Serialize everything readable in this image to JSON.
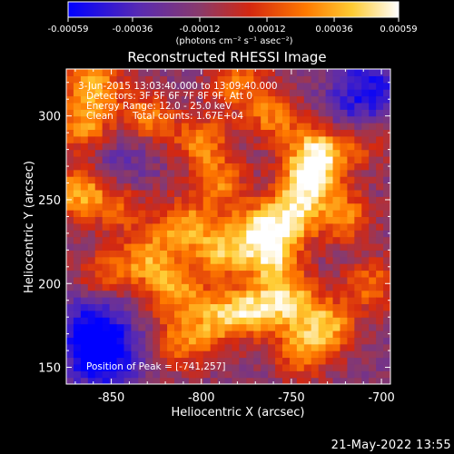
{
  "chart_data": {
    "type": "heatmap",
    "title": "Reconstructed RHESSI Image",
    "colorbar": {
      "ticks": [
        -0.00059,
        -0.00036,
        -0.00012,
        0.00012,
        0.00036,
        0.00059
      ],
      "tick_labels": [
        "-0.00059",
        "-0.00036",
        "-0.00012",
        "0.00012",
        "0.00036",
        "0.00059"
      ],
      "unit_label": "(photons cm⁻² s⁻¹ asec⁻²)",
      "range": [
        -0.00059,
        0.00059
      ]
    },
    "xlabel": "Heliocentric X (arcsec)",
    "ylabel": "Heliocentric Y (arcsec)",
    "xlim": [
      -875,
      -695
    ],
    "ylim": [
      140,
      328
    ],
    "xticks": [
      -850,
      -800,
      -750,
      -700
    ],
    "xtick_labels": [
      "-850",
      "-800",
      "-750",
      "-700"
    ],
    "yticks": [
      150,
      200,
      250,
      300
    ],
    "ytick_labels": [
      "150",
      "200",
      "250",
      "300"
    ],
    "grid": false,
    "annotations": {
      "time_range": "3-Jun-2015 13:03:40.000 to 13:09:40.000",
      "detectors": "Detectors: 3F 5F 6F 7F 8F 9F, Att 0",
      "energy": "Energy Range: 12.0 - 25.0 keV",
      "clean_label": "Clean",
      "total_counts": "Total counts: 1.67E+04",
      "peak": "Position of Peak = [-741,257]"
    },
    "peak_position": [
      -741,
      257
    ],
    "blobs": [
      {
        "x": -740,
        "y": 262,
        "amp": 1.0
      },
      {
        "x": -735,
        "y": 280,
        "amp": 0.9
      },
      {
        "x": -750,
        "y": 240,
        "amp": 0.85
      },
      {
        "x": -770,
        "y": 232,
        "amp": 0.8
      },
      {
        "x": -760,
        "y": 215,
        "amp": 0.8
      },
      {
        "x": -790,
        "y": 218,
        "amp": 0.75
      },
      {
        "x": -810,
        "y": 235,
        "amp": 0.7
      },
      {
        "x": -830,
        "y": 215,
        "amp": 0.7
      },
      {
        "x": -815,
        "y": 195,
        "amp": 0.7
      },
      {
        "x": -790,
        "y": 180,
        "amp": 0.7
      },
      {
        "x": -770,
        "y": 185,
        "amp": 0.8
      },
      {
        "x": -750,
        "y": 190,
        "amp": 0.75
      },
      {
        "x": -730,
        "y": 175,
        "amp": 0.75
      },
      {
        "x": -745,
        "y": 160,
        "amp": 0.6
      },
      {
        "x": -810,
        "y": 165,
        "amp": 0.6
      },
      {
        "x": -855,
        "y": 205,
        "amp": 0.45
      },
      {
        "x": -868,
        "y": 255,
        "amp": 0.8
      },
      {
        "x": -865,
        "y": 295,
        "amp": 0.7
      },
      {
        "x": -860,
        "y": 320,
        "amp": 0.75
      },
      {
        "x": -830,
        "y": 300,
        "amp": 0.6
      },
      {
        "x": -800,
        "y": 285,
        "amp": 0.65
      },
      {
        "x": -790,
        "y": 260,
        "amp": 0.6
      },
      {
        "x": -760,
        "y": 300,
        "amp": 0.6
      },
      {
        "x": -720,
        "y": 240,
        "amp": 0.6
      },
      {
        "x": -705,
        "y": 200,
        "amp": 0.55
      },
      {
        "x": -710,
        "y": 285,
        "amp": 0.45
      },
      {
        "x": -780,
        "y": 320,
        "amp": 0.55
      },
      {
        "x": -845,
        "y": 245,
        "amp": 0.45
      }
    ],
    "dark_regions": [
      {
        "x": -855,
        "y": 155,
        "amp": 0.7
      },
      {
        "x": -860,
        "y": 175,
        "amp": 0.6
      },
      {
        "x": -705,
        "y": 320,
        "amp": 0.45
      },
      {
        "x": -715,
        "y": 300,
        "amp": 0.35
      },
      {
        "x": -845,
        "y": 275,
        "amp": 0.25
      }
    ]
  },
  "footer": {
    "date": "21-May-2022 13:55"
  }
}
